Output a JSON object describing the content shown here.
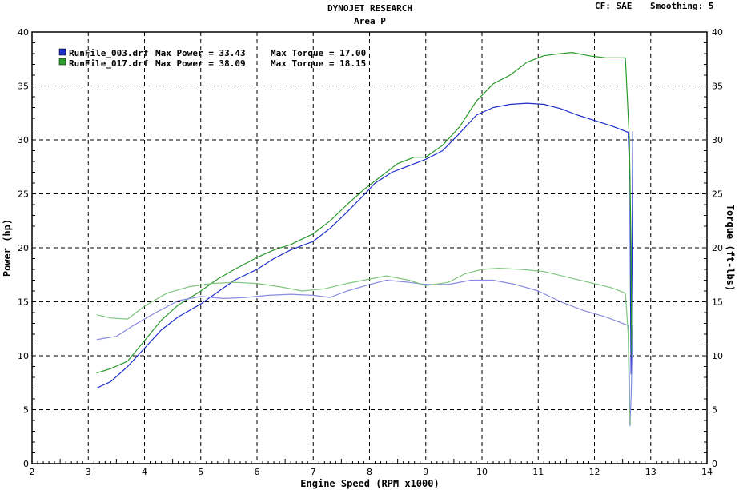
{
  "header": {
    "title": "DYNOJET RESEARCH",
    "subtitle": "Area P",
    "cf_label": "CF: SAE",
    "smoothing_label": "Smoothing: 5"
  },
  "legend": [
    {
      "file": "RunFile_003.drf",
      "power_label": "Max Power = 33.43",
      "torque_label": "Max Torque = 17.00",
      "color": "#1e2ec8"
    },
    {
      "file": "RunFile_017.drf",
      "power_label": "Max Power = 38.09",
      "torque_label": "Max Torque = 18.15",
      "color": "#2a9a2a"
    }
  ],
  "chart_data": {
    "type": "line",
    "title": "DYNOJET RESEARCH",
    "subtitle": "Area P",
    "xlabel": "Engine Speed (RPM x1000)",
    "ylabel": "Power (hp)",
    "y2label": "Torque (ft-lbs)",
    "xlim": [
      2,
      14
    ],
    "ylim": [
      0,
      40
    ],
    "y2lim": [
      0,
      40
    ],
    "xticks": [
      2,
      3,
      4,
      5,
      6,
      7,
      8,
      9,
      10,
      11,
      12,
      13,
      14
    ],
    "yticks": [
      0,
      5,
      10,
      15,
      20,
      25,
      30,
      35,
      40
    ],
    "grid": true,
    "legend_position": "top-left",
    "series": [
      {
        "name": "RunFile_003.drf",
        "kind": "power",
        "color": "#1e2ec8",
        "points": [
          [
            3.15,
            7.0
          ],
          [
            3.4,
            7.6
          ],
          [
            3.7,
            9.0
          ],
          [
            4.0,
            10.7
          ],
          [
            4.3,
            12.4
          ],
          [
            4.6,
            13.6
          ],
          [
            5.0,
            14.8
          ],
          [
            5.3,
            15.9
          ],
          [
            5.6,
            17.0
          ],
          [
            6.0,
            18.0
          ],
          [
            6.3,
            19.0
          ],
          [
            6.6,
            19.8
          ],
          [
            7.0,
            20.6
          ],
          [
            7.3,
            21.8
          ],
          [
            7.6,
            23.3
          ],
          [
            7.9,
            24.9
          ],
          [
            8.1,
            26.0
          ],
          [
            8.4,
            27.0
          ],
          [
            8.7,
            27.6
          ],
          [
            9.0,
            28.2
          ],
          [
            9.3,
            29.0
          ],
          [
            9.6,
            30.6
          ],
          [
            9.9,
            32.3
          ],
          [
            10.2,
            33.0
          ],
          [
            10.5,
            33.3
          ],
          [
            10.8,
            33.4
          ],
          [
            11.1,
            33.3
          ],
          [
            11.4,
            32.9
          ],
          [
            11.7,
            32.3
          ],
          [
            12.0,
            31.8
          ],
          [
            12.3,
            31.3
          ],
          [
            12.6,
            30.7
          ],
          [
            12.63,
            26
          ],
          [
            12.64,
            15
          ],
          [
            12.65,
            8.3
          ],
          [
            12.67,
            20
          ],
          [
            12.68,
            30.8
          ]
        ]
      },
      {
        "name": "RunFile_017.drf",
        "kind": "power",
        "color": "#2a9a2a",
        "points": [
          [
            3.15,
            8.4
          ],
          [
            3.4,
            8.8
          ],
          [
            3.7,
            9.5
          ],
          [
            4.0,
            11.4
          ],
          [
            4.3,
            13.3
          ],
          [
            4.6,
            14.7
          ],
          [
            5.0,
            16.0
          ],
          [
            5.3,
            17.1
          ],
          [
            5.6,
            18.0
          ],
          [
            6.0,
            19.1
          ],
          [
            6.3,
            19.8
          ],
          [
            6.6,
            20.3
          ],
          [
            7.0,
            21.3
          ],
          [
            7.3,
            22.5
          ],
          [
            7.6,
            24.0
          ],
          [
            7.9,
            25.4
          ],
          [
            8.2,
            26.6
          ],
          [
            8.5,
            27.8
          ],
          [
            8.8,
            28.4
          ],
          [
            9.0,
            28.4
          ],
          [
            9.3,
            29.5
          ],
          [
            9.6,
            31.2
          ],
          [
            9.9,
            33.6
          ],
          [
            10.2,
            35.2
          ],
          [
            10.5,
            36.0
          ],
          [
            10.8,
            37.2
          ],
          [
            11.1,
            37.8
          ],
          [
            11.4,
            38.0
          ],
          [
            11.6,
            38.1
          ],
          [
            11.9,
            37.8
          ],
          [
            12.2,
            37.6
          ],
          [
            12.55,
            37.6
          ],
          [
            12.62,
            30
          ],
          [
            12.65,
            20
          ],
          [
            12.66,
            10
          ]
        ]
      },
      {
        "name": "RunFile_003.drf",
        "kind": "torque",
        "color": "#8a8ae0",
        "points": [
          [
            3.15,
            11.5
          ],
          [
            3.5,
            11.8
          ],
          [
            3.8,
            12.8
          ],
          [
            4.2,
            14.0
          ],
          [
            4.6,
            15.1
          ],
          [
            5.0,
            15.5
          ],
          [
            5.4,
            15.3
          ],
          [
            5.8,
            15.4
          ],
          [
            6.2,
            15.6
          ],
          [
            6.6,
            15.7
          ],
          [
            7.0,
            15.6
          ],
          [
            7.3,
            15.4
          ],
          [
            7.6,
            16.0
          ],
          [
            8.0,
            16.6
          ],
          [
            8.3,
            17.0
          ],
          [
            8.7,
            16.8
          ],
          [
            9.0,
            16.6
          ],
          [
            9.4,
            16.6
          ],
          [
            9.8,
            17.0
          ],
          [
            10.2,
            17.0
          ],
          [
            10.6,
            16.6
          ],
          [
            11.0,
            16.0
          ],
          [
            11.4,
            15.0
          ],
          [
            11.8,
            14.2
          ],
          [
            12.2,
            13.6
          ],
          [
            12.6,
            12.8
          ],
          [
            12.62,
            8
          ],
          [
            12.63,
            3.5
          ],
          [
            12.65,
            6
          ],
          [
            12.68,
            12.8
          ]
        ]
      },
      {
        "name": "RunFile_017.drf",
        "kind": "torque",
        "color": "#7fc67f",
        "points": [
          [
            3.15,
            13.8
          ],
          [
            3.4,
            13.5
          ],
          [
            3.7,
            13.4
          ],
          [
            4.0,
            14.6
          ],
          [
            4.4,
            15.8
          ],
          [
            4.8,
            16.4
          ],
          [
            5.2,
            16.7
          ],
          [
            5.6,
            16.8
          ],
          [
            6.0,
            16.7
          ],
          [
            6.4,
            16.4
          ],
          [
            6.8,
            16.0
          ],
          [
            7.2,
            16.2
          ],
          [
            7.6,
            16.7
          ],
          [
            8.0,
            17.1
          ],
          [
            8.3,
            17.4
          ],
          [
            8.7,
            17.0
          ],
          [
            9.0,
            16.5
          ],
          [
            9.4,
            16.8
          ],
          [
            9.7,
            17.6
          ],
          [
            10.0,
            18.0
          ],
          [
            10.3,
            18.1
          ],
          [
            10.7,
            18.0
          ],
          [
            11.1,
            17.8
          ],
          [
            11.5,
            17.3
          ],
          [
            11.9,
            16.8
          ],
          [
            12.3,
            16.3
          ],
          [
            12.55,
            15.8
          ],
          [
            12.6,
            12
          ],
          [
            12.62,
            5
          ],
          [
            12.64,
            3.6
          ]
        ]
      }
    ]
  }
}
